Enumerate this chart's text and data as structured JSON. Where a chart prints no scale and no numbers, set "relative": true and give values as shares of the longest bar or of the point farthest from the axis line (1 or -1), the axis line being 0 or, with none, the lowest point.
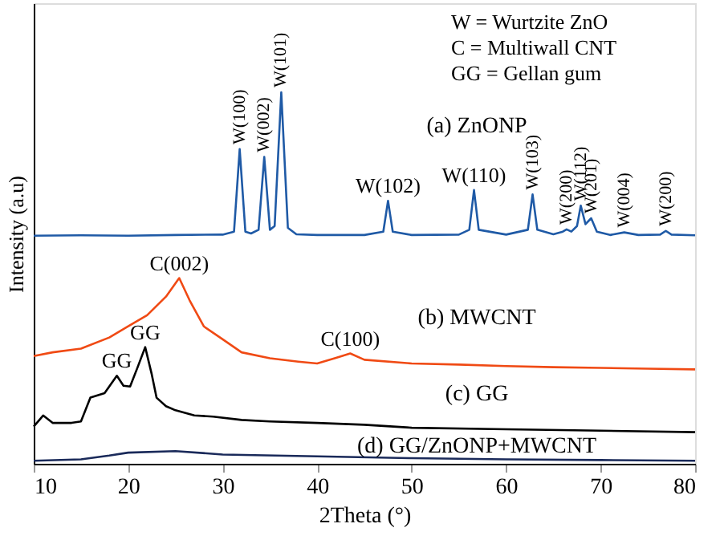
{
  "chart_data": {
    "type": "line",
    "relative": true,
    "xlabel": "2Theta (°)",
    "ylabel": "Intensity (a.u)",
    "xlim": [
      10,
      80
    ],
    "xticks": [
      10,
      20,
      30,
      40,
      50,
      60,
      70,
      80
    ],
    "series": [
      {
        "name": "(a) ZnONP",
        "color": "#1f5aa6",
        "x": [
          10,
          15,
          20,
          25,
          30,
          31.2,
          31.8,
          32.4,
          33.0,
          33.8,
          34.4,
          35.0,
          35.5,
          36.2,
          36.9,
          37.8,
          40,
          45,
          47,
          47.5,
          48.0,
          50,
          55,
          56.1,
          56.6,
          57.1,
          60,
          62.3,
          62.8,
          63.3,
          65,
          66.0,
          66.4,
          66.9,
          67.5,
          67.9,
          68.4,
          69.0,
          69.6,
          71,
          72.5,
          74,
          76.3,
          76.9,
          77.5,
          80
        ],
        "values": [
          0.614,
          0.615,
          0.614,
          0.616,
          0.617,
          0.625,
          0.847,
          0.625,
          0.62,
          0.63,
          0.826,
          0.63,
          0.64,
          1.0,
          0.635,
          0.618,
          0.616,
          0.616,
          0.625,
          0.708,
          0.625,
          0.616,
          0.617,
          0.63,
          0.737,
          0.63,
          0.617,
          0.63,
          0.725,
          0.63,
          0.618,
          0.625,
          0.631,
          0.625,
          0.64,
          0.695,
          0.645,
          0.661,
          0.625,
          0.616,
          0.623,
          0.616,
          0.617,
          0.627,
          0.617,
          0.615
        ]
      },
      {
        "name": "(b) MWCNT",
        "color": "#f04a14",
        "x": [
          10,
          12,
          15,
          18,
          20,
          22,
          24,
          25.4,
          26.5,
          28,
          30,
          32,
          35,
          38,
          40,
          42,
          43.5,
          45,
          50,
          55,
          60,
          65,
          70,
          75,
          80
        ],
        "values": [
          0.29,
          0.3,
          0.31,
          0.34,
          0.37,
          0.4,
          0.45,
          0.5,
          0.44,
          0.37,
          0.335,
          0.3,
          0.284,
          0.275,
          0.27,
          0.285,
          0.297,
          0.28,
          0.27,
          0.267,
          0.263,
          0.26,
          0.258,
          0.256,
          0.254
        ]
      },
      {
        "name": "(c) GG",
        "color": "#000000",
        "x": [
          10,
          11,
          12,
          14,
          15,
          16,
          17.5,
          18.8,
          19.5,
          20.2,
          21.0,
          21.8,
          22.5,
          23,
          24,
          25,
          27,
          29,
          32,
          35,
          40,
          45,
          50,
          60,
          70,
          80
        ],
        "values": [
          0.1,
          0.13,
          0.11,
          0.11,
          0.114,
          0.178,
          0.19,
          0.237,
          0.21,
          0.208,
          0.26,
          0.314,
          0.24,
          0.178,
          0.155,
          0.144,
          0.13,
          0.127,
          0.118,
          0.114,
          0.11,
          0.105,
          0.097,
          0.093,
          0.089,
          0.085
        ]
      },
      {
        "name": "(d) GG/ZnONP+MWCNT",
        "color": "#1a2a5a",
        "x": [
          10,
          15,
          18,
          20,
          25,
          30,
          40,
          50,
          60,
          70,
          80
        ],
        "values": [
          0.008,
          0.012,
          0.022,
          0.03,
          0.034,
          0.025,
          0.02,
          0.015,
          0.012,
          0.01,
          0.008
        ]
      }
    ],
    "annotations": [
      {
        "text": "W(100)",
        "x": 31.8,
        "y": 0.847
      },
      {
        "text": "W(002)",
        "x": 34.4,
        "y": 0.826
      },
      {
        "text": "W(101)",
        "x": 36.2,
        "y": 1.0
      },
      {
        "text": "W(102)",
        "x": 47.5,
        "y": 0.708
      },
      {
        "text": "W(110)",
        "x": 56.6,
        "y": 0.737
      },
      {
        "text": "W(103)",
        "x": 62.8,
        "y": 0.725
      },
      {
        "text": "W(200)",
        "x": 66.4,
        "y": 0.631
      },
      {
        "text": "W(112)",
        "x": 67.9,
        "y": 0.695
      },
      {
        "text": "W(201)",
        "x": 69.0,
        "y": 0.661
      },
      {
        "text": "W(004)",
        "x": 72.5,
        "y": 0.623
      },
      {
        "text": "W(200)",
        "x": 76.9,
        "y": 0.627
      },
      {
        "text": "C(002)",
        "x": 25.4,
        "y": 0.5
      },
      {
        "text": "C(100)",
        "x": 43.5,
        "y": 0.297
      },
      {
        "text": "GG",
        "x": 18.8,
        "y": 0.237
      },
      {
        "text": "GG",
        "x": 21.8,
        "y": 0.314
      },
      "W  = Wurtzite ZnO",
      "C    = Multiwall CNT",
      "GG = Gellan gum"
    ]
  }
}
